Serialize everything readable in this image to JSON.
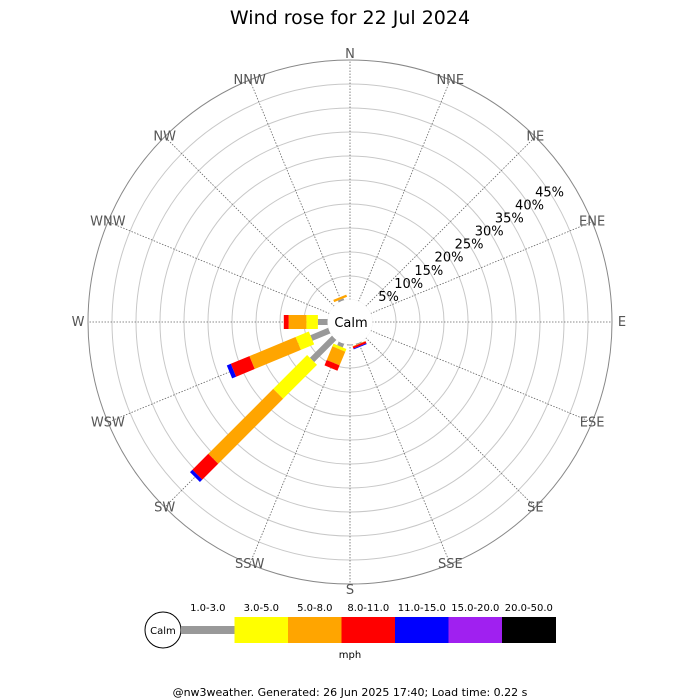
{
  "chart_data": {
    "type": "wind-rose",
    "title": "Wind rose for 22 Jul 2024",
    "directions": [
      "N",
      "NNE",
      "NE",
      "ENE",
      "E",
      "ESE",
      "SE",
      "SSE",
      "S",
      "SSW",
      "SW",
      "WSW",
      "W",
      "WNW",
      "NW",
      "NNW"
    ],
    "ring_labels": [
      "5%",
      "10%",
      "15%",
      "20%",
      "25%",
      "30%",
      "35%",
      "40%",
      "45%"
    ],
    "calm_label": "Calm",
    "unit": "mph",
    "speed_bins": [
      {
        "label": "1.0-3.0",
        "color": "#999999"
      },
      {
        "label": "3.0-5.0",
        "color": "#ffff00"
      },
      {
        "label": "5.0-8.0",
        "color": "#ffa500"
      },
      {
        "label": "8.0-11.0",
        "color": "#ff0000"
      },
      {
        "label": "11.0-15.0",
        "color": "#0000ff"
      },
      {
        "label": "15.0-20.0",
        "color": "#a020f0"
      },
      {
        "label": "20.0-50.0",
        "color": "#000000"
      }
    ],
    "series_cumulative_percent": [
      {
        "direction": "NNW",
        "values": [
          0.5,
          0.5,
          1.0,
          1.0,
          1.0,
          1.0,
          1.0
        ]
      },
      {
        "direction": "SSE",
        "values": [
          0.3,
          0.3,
          0.4,
          0.8,
          1.0,
          1.0,
          1.0
        ]
      },
      {
        "direction": "S",
        "values": [
          0.3,
          0.3,
          0.3,
          0.3,
          0.3,
          0.3,
          0.3
        ]
      },
      {
        "direction": "SSW",
        "values": [
          0.9,
          1.5,
          4.6,
          5.8,
          5.8,
          5.8,
          5.8
        ]
      },
      {
        "direction": "SW",
        "values": [
          6.6,
          16.6,
          35.7,
          40.4,
          41.1,
          41.1,
          41.1
        ]
      },
      {
        "direction": "WSW",
        "values": [
          4.1,
          7.1,
          17.5,
          21.7,
          22.6,
          22.6,
          22.6
        ]
      },
      {
        "direction": "W",
        "values": [
          2.1,
          4.5,
          8.2,
          9.2,
          9.2,
          9.2,
          9.2
        ]
      }
    ]
  },
  "footer": "@nw3weather. Generated: 26 Jun 2025 17:40; Load time: 0.22 s"
}
